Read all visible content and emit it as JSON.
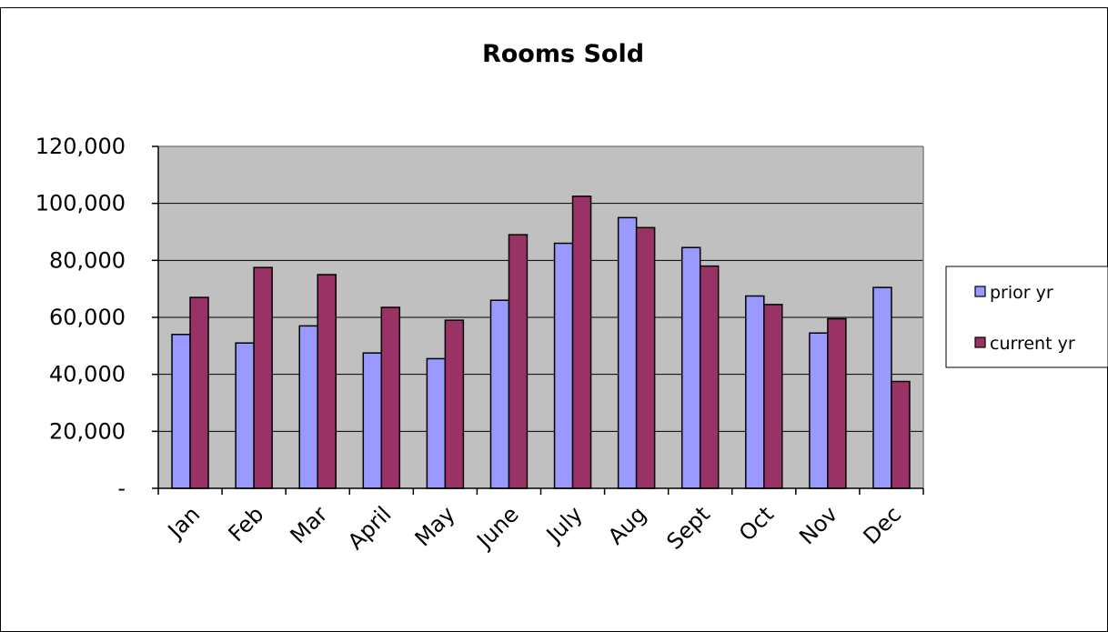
{
  "chart_data": {
    "type": "bar",
    "title": "Rooms Sold",
    "xlabel": "",
    "ylabel": "",
    "categories": [
      "Jan",
      "Feb",
      "Mar",
      "April",
      "May",
      "June",
      "July",
      "Aug",
      "Sept",
      "Oct",
      "Nov",
      "Dec"
    ],
    "series": [
      {
        "name": "prior yr",
        "color": "#9999ff",
        "values": [
          54000,
          51000,
          57000,
          47500,
          45500,
          66000,
          86000,
          95000,
          84500,
          67500,
          54500,
          70500
        ]
      },
      {
        "name": "current yr",
        "color": "#993366",
        "values": [
          67000,
          77500,
          75000,
          63500,
          59000,
          89000,
          102500,
          91500,
          78000,
          64500,
          59500,
          37500
        ]
      }
    ],
    "ylim": [
      0,
      120000
    ],
    "yticks": [
      0,
      20000,
      40000,
      60000,
      80000,
      100000,
      120000
    ],
    "ytick_labels": [
      "-",
      "20,000",
      "40,000",
      "60,000",
      "80,000",
      "100,000",
      "120,000"
    ],
    "grid": true,
    "plot_background": "#c0c0c0",
    "legend_position": "right"
  }
}
